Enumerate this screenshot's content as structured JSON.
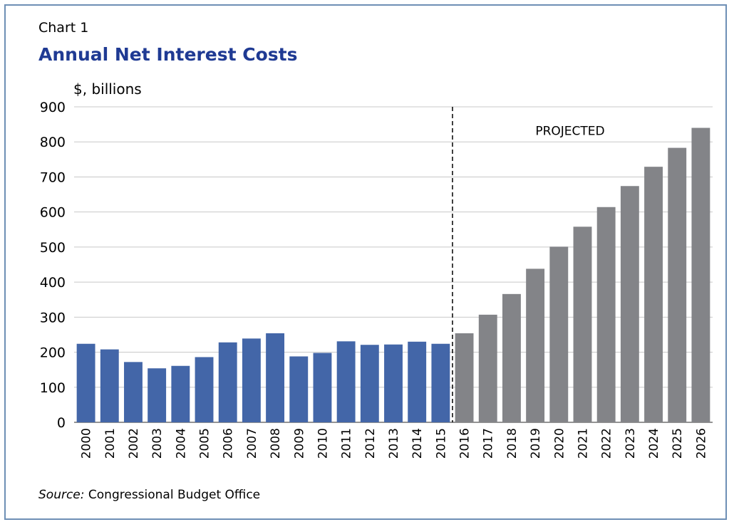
{
  "header": {
    "label": "Chart 1",
    "title": "Annual Net Interest Costs"
  },
  "footer": {
    "source_prefix": "Source:",
    "source_text": "Congressional Budget Office"
  },
  "colors": {
    "actual": "#4366a8",
    "projected": "#838488",
    "title": "#1f3a93",
    "frame": "#6e8fb5"
  },
  "chart_data": {
    "type": "bar",
    "ylabel": "$, billions",
    "ylim": [
      0,
      900
    ],
    "yticks": [
      0,
      100,
      200,
      300,
      400,
      500,
      600,
      700,
      800,
      900
    ],
    "grid": true,
    "annotation": "PROJECTED",
    "divider_after": "2015",
    "categories": [
      "2000",
      "2001",
      "2002",
      "2003",
      "2004",
      "2005",
      "2006",
      "2007",
      "2008",
      "2009",
      "2010",
      "2011",
      "2012",
      "2013",
      "2014",
      "2015",
      "2016",
      "2017",
      "2018",
      "2019",
      "2020",
      "2021",
      "2022",
      "2023",
      "2024",
      "2025",
      "2026"
    ],
    "series": [
      {
        "values": [
          224,
          208,
          172,
          154,
          161,
          186,
          228,
          239,
          254,
          188,
          198,
          231,
          221,
          222,
          230,
          224,
          254,
          307,
          366,
          438,
          501,
          558,
          614,
          674,
          729,
          783,
          840
        ]
      }
    ],
    "projected_from": "2016"
  }
}
